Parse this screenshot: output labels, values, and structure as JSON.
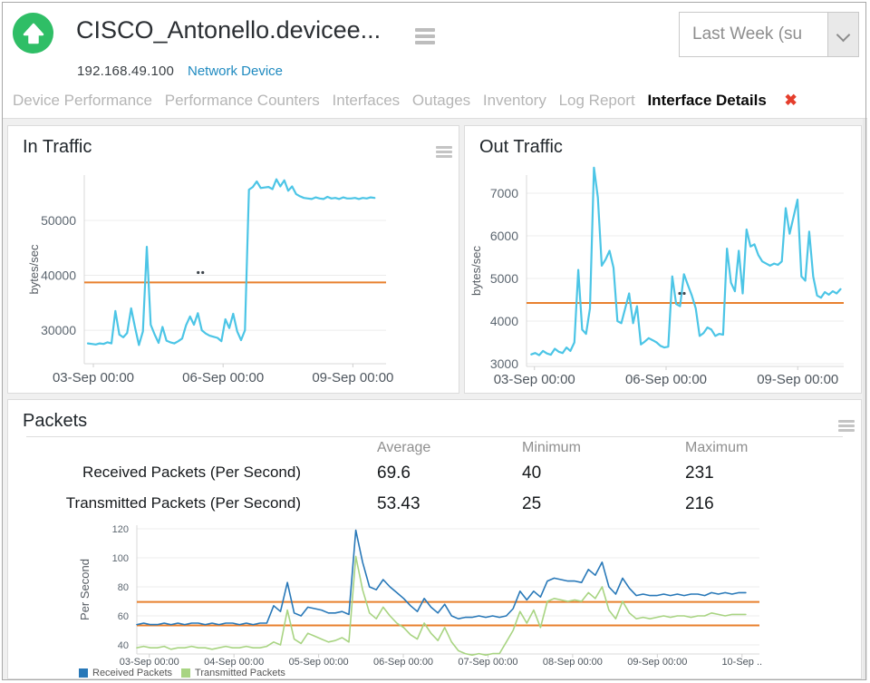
{
  "header": {
    "title": "CISCO_Antonello.devicee...",
    "ip": "192.168.49.100",
    "device_type_link": "Network Device",
    "time_range_value": "Last Week (su",
    "status_color": "#2fbe66",
    "link_color": "#1f8ac0"
  },
  "tabs": {
    "items": [
      {
        "label": "Device Performance"
      },
      {
        "label": "Performance Counters"
      },
      {
        "label": "Interfaces"
      },
      {
        "label": "Outages"
      },
      {
        "label": "Inventory"
      },
      {
        "label": "Log Report"
      },
      {
        "label": "Interface Details",
        "active": true
      }
    ],
    "close_glyph": "✖",
    "close_color": "#e53e2c"
  },
  "packets_table": {
    "headers": [
      "Average",
      "Minimum",
      "Maximum"
    ],
    "rows": [
      {
        "label": "Received Packets (Per Second)",
        "average": "69.6",
        "minimum": "40",
        "maximum": "231"
      },
      {
        "label": "Transmitted Packets (Per Second)",
        "average": "53.43",
        "minimum": "25",
        "maximum": "216"
      }
    ]
  },
  "chart_data": [
    {
      "id": "in_traffic",
      "type": "line",
      "title": "In Traffic",
      "ylabel": "bytes/sec",
      "ylim": [
        23900,
        58260
      ],
      "yticks": [
        30000,
        40000,
        50000
      ],
      "xticks": [
        {
          "f": 0.03,
          "label": "03-Sep 00:00"
        },
        {
          "f": 0.46,
          "label": "06-Sep 00:00"
        },
        {
          "f": 0.89,
          "label": "09-Sep 00:00"
        }
      ],
      "thresholds": [
        38700
      ],
      "threshold_color": "#e8802e",
      "dots": {
        "frac": 0.385,
        "value": 40500
      },
      "grid": true,
      "series": [
        {
          "name": "In Traffic",
          "color": "#4cc5e6",
          "values": [
            27600,
            27500,
            27400,
            27600,
            27500,
            27800,
            27600,
            33500,
            29200,
            28700,
            29500,
            34000,
            30500,
            27300,
            29800,
            45200,
            31000,
            29200,
            27700,
            30600,
            28100,
            27800,
            27600,
            28000,
            28500,
            30900,
            32500,
            31000,
            33100,
            30000,
            29400,
            29000,
            28800,
            28600,
            28000,
            32000,
            30400,
            33000,
            29800,
            28200,
            30000,
            55600,
            56100,
            57100,
            55900,
            56000,
            56100,
            55700,
            57500,
            56200,
            57300,
            55400,
            56200,
            54800,
            54400,
            54100,
            54000,
            53900,
            54200,
            54000,
            53900,
            54300,
            54000,
            54100,
            53900,
            54200,
            54000,
            54000,
            54100,
            53900,
            54100,
            54000,
            54200,
            54100
          ]
        }
      ]
    },
    {
      "id": "out_traffic",
      "type": "line",
      "title": "Out Traffic",
      "ylabel": "bytes/sec",
      "ylim": [
        2936,
        7426
      ],
      "yticks": [
        3000,
        4000,
        5000,
        6000,
        7000
      ],
      "xticks": [
        {
          "f": 0.025,
          "label": "03-Sep 00:00"
        },
        {
          "f": 0.44,
          "label": "06-Sep 00:00"
        },
        {
          "f": 0.855,
          "label": "09-Sep 00:00"
        }
      ],
      "thresholds": [
        4425
      ],
      "threshold_color": "#e8802e",
      "dots": {
        "frac": 0.49,
        "value": 4650
      },
      "grid": true,
      "series": [
        {
          "name": "Out Traffic",
          "color": "#4cc5e6",
          "values": [
            3220,
            3250,
            3200,
            3300,
            3240,
            3210,
            3350,
            3280,
            3250,
            3380,
            3300,
            3500,
            5200,
            3800,
            3700,
            4300,
            7600,
            6900,
            5300,
            5450,
            5650,
            5250,
            4000,
            3950,
            4300,
            4650,
            3950,
            4350,
            3450,
            3520,
            3600,
            3550,
            3500,
            3420,
            3380,
            3400,
            5050,
            4400,
            4350,
            5100,
            4850,
            4600,
            4300,
            3650,
            3720,
            3850,
            3800,
            3650,
            3700,
            3680,
            5700,
            4900,
            4700,
            5650,
            4650,
            6150,
            5750,
            5800,
            5550,
            5400,
            5350,
            5300,
            5350,
            5320,
            5400,
            6650,
            6050,
            6450,
            6850,
            5050,
            4950,
            6100,
            5050,
            4600,
            4550,
            4680,
            4620,
            4700,
            4650,
            4750
          ]
        }
      ]
    },
    {
      "id": "packets",
      "type": "line",
      "title": "Packets",
      "ylabel": "Per Second",
      "ylim": [
        33.75,
        122.5
      ],
      "yticks": [
        40,
        60,
        80,
        100,
        120
      ],
      "xticks": [
        {
          "f": 0.02,
          "label": "03-Sep 00:00"
        },
        {
          "f": 0.156,
          "label": "04-Sep 00:00"
        },
        {
          "f": 0.292,
          "label": "05-Sep 00:00"
        },
        {
          "f": 0.428,
          "label": "06-Sep 00:00"
        },
        {
          "f": 0.564,
          "label": "07-Sep 00:00"
        },
        {
          "f": 0.7,
          "label": "08-Sep 00:00"
        },
        {
          "f": 0.836,
          "label": "09-Sep 00:00"
        },
        {
          "f": 0.972,
          "label": "10-Sep .."
        }
      ],
      "thresholds": [
        69.6,
        53.43
      ],
      "threshold_color": "#e8802e",
      "grid": true,
      "legend_position": "bottom-left",
      "series": [
        {
          "name": "Received Packets",
          "color": "#2878b8",
          "values": [
            54,
            55,
            54,
            54,
            55,
            54,
            55,
            54,
            55,
            55,
            54,
            55,
            54,
            55,
            55,
            54,
            55,
            54,
            55,
            55,
            67,
            63,
            83,
            62,
            60,
            66,
            65,
            64,
            62,
            62,
            63,
            61,
            119,
            97,
            80,
            78,
            85,
            80,
            76,
            72,
            67,
            63,
            72,
            66,
            62,
            68,
            60,
            58,
            59,
            59,
            60,
            59,
            60,
            59,
            60,
            65,
            77,
            71,
            77,
            73,
            84,
            86,
            85,
            84,
            84,
            83,
            92,
            88,
            97,
            80,
            75,
            86,
            79,
            74,
            75,
            74,
            74,
            75,
            74,
            75,
            74,
            75,
            75,
            74,
            76,
            75,
            76,
            75,
            76,
            76
          ]
        },
        {
          "name": "Transmitted Packets",
          "color": "#a8d482",
          "values": [
            38,
            39,
            38,
            38,
            39,
            37,
            38,
            38,
            39,
            38,
            38,
            37,
            38,
            39,
            38,
            38,
            39,
            38,
            38,
            39,
            42,
            40,
            64,
            44,
            41,
            48,
            46,
            44,
            42,
            43,
            45,
            42,
            101,
            78,
            62,
            58,
            66,
            60,
            55,
            52,
            47,
            44,
            55,
            48,
            43,
            52,
            42,
            36,
            34,
            33,
            34,
            33,
            34,
            34,
            42,
            50,
            63,
            55,
            64,
            52,
            70,
            72,
            71,
            70,
            71,
            70,
            76,
            72,
            80,
            64,
            58,
            70,
            62,
            58,
            59,
            58,
            59,
            60,
            59,
            60,
            60,
            59,
            60,
            60,
            62,
            61,
            60,
            61,
            61,
            61
          ]
        }
      ]
    }
  ]
}
